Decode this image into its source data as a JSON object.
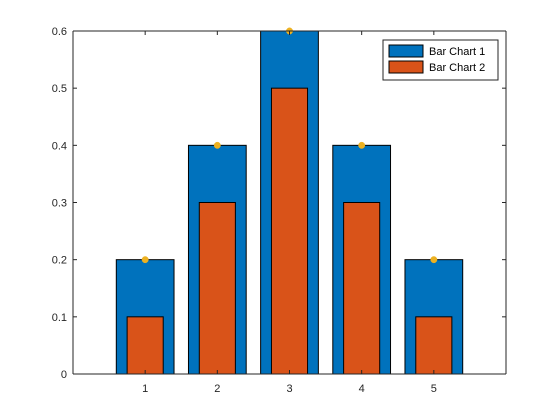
{
  "chart_data": {
    "type": "bar",
    "categories": [
      "1",
      "2",
      "3",
      "4",
      "5"
    ],
    "x": [
      1,
      2,
      3,
      4,
      5
    ],
    "series": [
      {
        "name": "Bar Chart 1",
        "values": [
          0.2,
          0.4,
          0.6,
          0.4,
          0.2
        ],
        "color": "#0072BD",
        "bar_width_fraction": 0.8
      },
      {
        "name": "Bar Chart 2",
        "values": [
          0.1,
          0.3,
          0.5,
          0.3,
          0.1
        ],
        "color": "#D95319",
        "bar_width_fraction": 0.5
      }
    ],
    "markers": {
      "values": [
        0.2,
        0.4,
        0.6,
        0.4,
        0.2
      ],
      "color": "#EDB120",
      "shape": "circle"
    },
    "xlim": [
      0,
      6
    ],
    "ylim": [
      0,
      0.6
    ],
    "xticks": [
      "1",
      "2",
      "3",
      "4",
      "5"
    ],
    "yticks": [
      "0",
      "0.1",
      "0.2",
      "0.3",
      "0.4",
      "0.5",
      "0.6"
    ],
    "title": "",
    "xlabel": "",
    "ylabel": "",
    "grid": false,
    "legend_position": "top-right",
    "axis_color": "#262626"
  }
}
